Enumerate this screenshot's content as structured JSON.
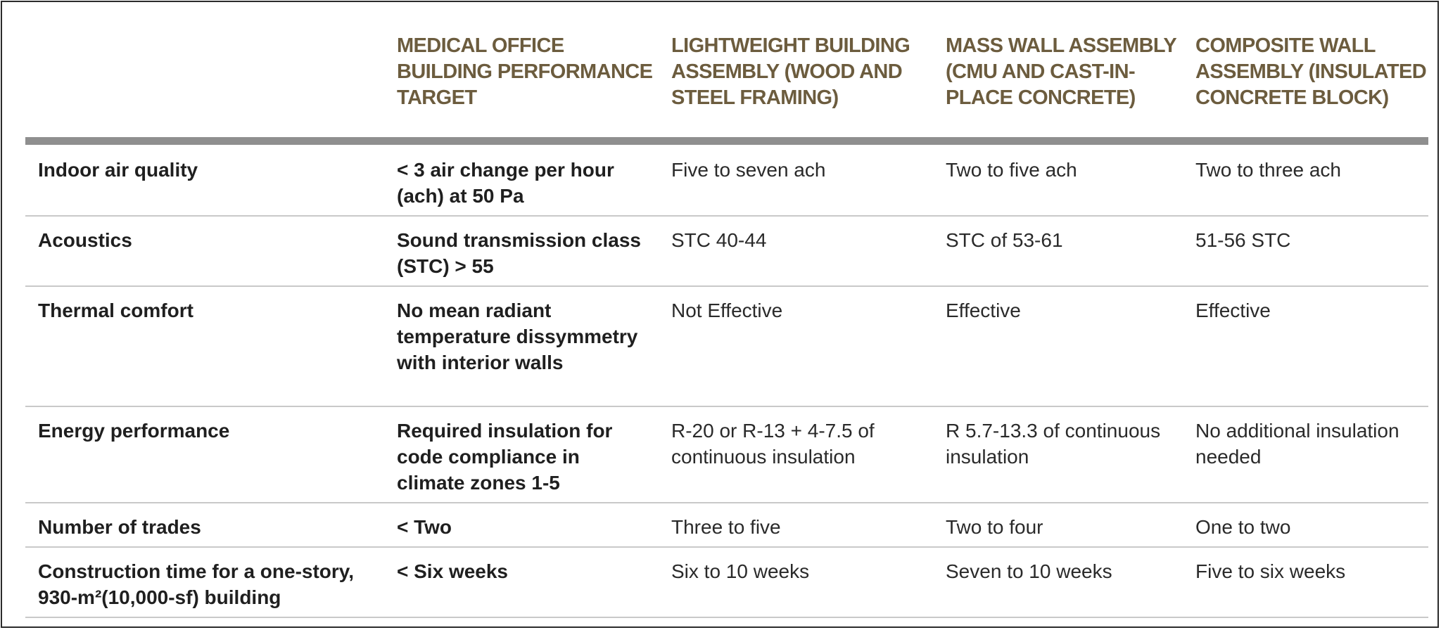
{
  "table": {
    "headers": [
      "",
      "MEDICAL OFFICE BUILDING PERFORMANCE TARGET",
      "LIGHTWEIGHT BUILDING ASSEMBLY (WOOD AND STEEL FRAMING)",
      "MASS WALL ASSEMBLY (CMU AND CAST-IN-PLACE CONCRETE)",
      "COMPOSITE WALL ASSEMBLY (INSULATED CONCRETE BLOCK)"
    ],
    "rows": [
      {
        "label": "Indoor air quality",
        "target": "< 3 air change per hour (ach) at 50 Pa",
        "lightweight": "Five to seven ach",
        "mass": "Two to five ach",
        "composite": "Two to three ach"
      },
      {
        "label": "Acoustics",
        "target": "Sound transmission class (STC) > 55",
        "lightweight": "STC 40-44",
        "mass": "STC of 53-61",
        "composite": "51-56 STC"
      },
      {
        "label": "Thermal comfort",
        "target": "No mean radiant temperature dissymmetry with interior walls",
        "lightweight": "Not Effective",
        "mass": "Effective",
        "composite": "Effective"
      },
      {
        "label": "Energy performance",
        "target": "Required insulation for code compliance in climate zones 1-5",
        "lightweight": "R-20 or R-13 + 4-7.5 of continuous insulation",
        "mass": "R 5.7-13.3 of continuous insulation",
        "composite": "No additional insulation needed"
      },
      {
        "label": "Number of trades",
        "target": "< Two",
        "lightweight": "Three to five",
        "mass": "Two to four",
        "composite": "One to two"
      },
      {
        "label": "Construction time for a one-story, 930-m²(10,000-sf) building",
        "target": "< Six weeks",
        "lightweight": "Six to 10 weeks",
        "mass": "Seven to 10 weeks",
        "composite": "Five to six weeks"
      }
    ]
  },
  "colors": {
    "header_text": "#6c5c3e",
    "header_rule": "#8f8f8f",
    "row_rule": "#c9c9c9",
    "body_text": "#1f1f1f"
  }
}
